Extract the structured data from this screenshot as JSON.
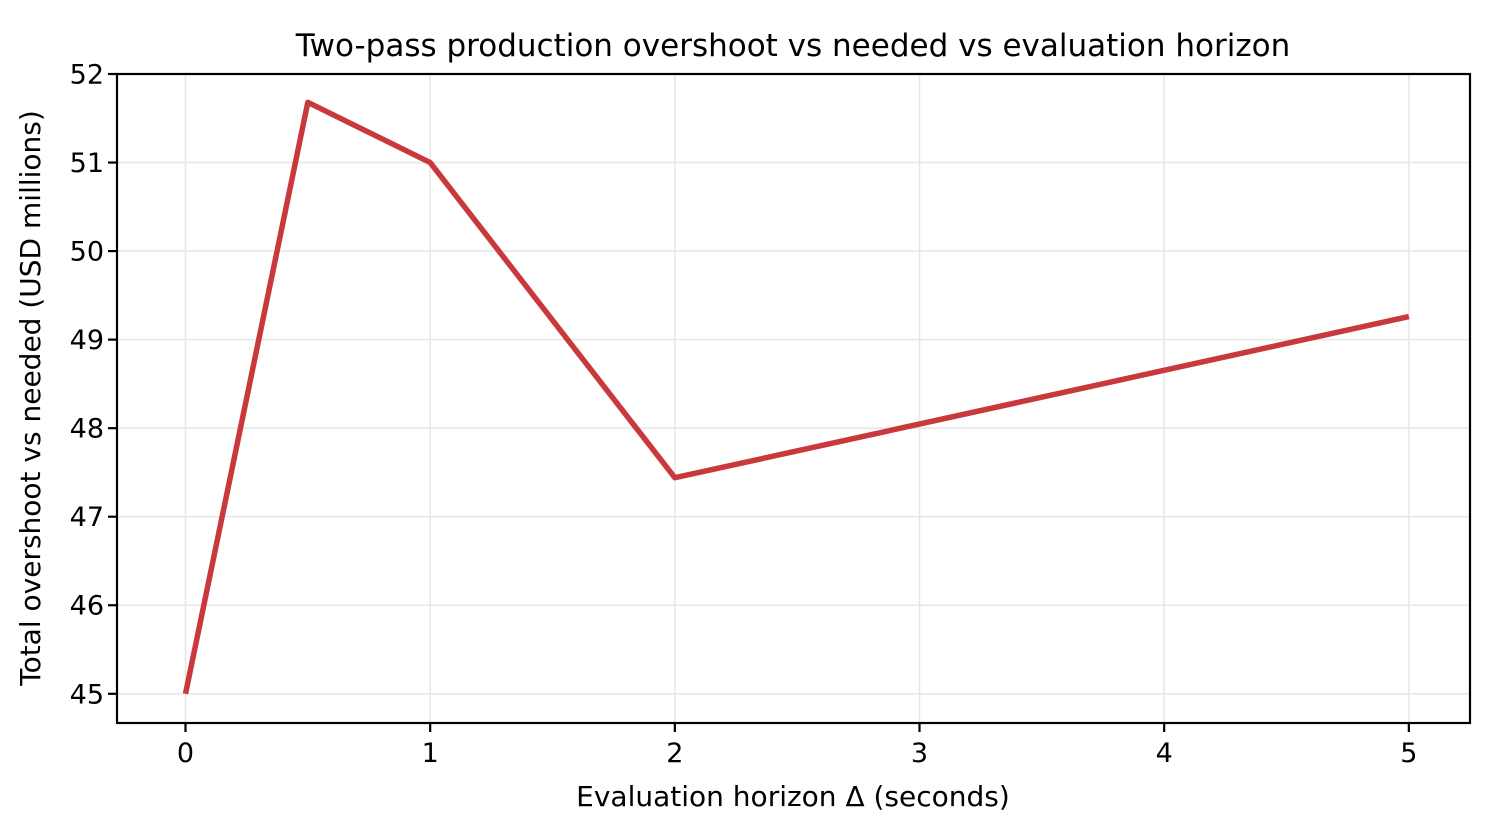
{
  "chart_data": {
    "type": "line",
    "title": "Two-pass production overshoot vs needed vs evaluation horizon",
    "xlabel": "Evaluation horizon Δ (seconds)",
    "ylabel": "Total overshoot vs needed (USD millions)",
    "x": [
      0,
      0.5,
      1,
      2,
      5
    ],
    "y": [
      45.0,
      51.68,
      51.0,
      47.44,
      49.26
    ],
    "xticks": [
      0,
      1,
      2,
      3,
      4,
      5
    ],
    "yticks": [
      45,
      46,
      47,
      48,
      49,
      50,
      51,
      52
    ],
    "xlim": [
      -0.28,
      5.25
    ],
    "ylim": [
      44.67,
      52.0
    ],
    "grid": true,
    "legend_position": "none",
    "line_color": "#c9383b",
    "line_width": 5.5,
    "grid_color": "#e7e7e7",
    "spine_color": "#000000",
    "background_color": "#ffffff"
  }
}
